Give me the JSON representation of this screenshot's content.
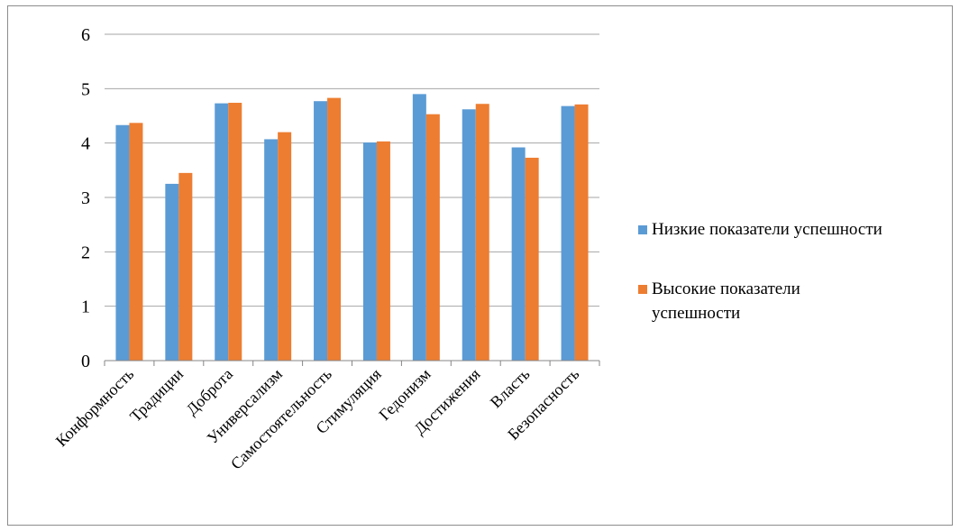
{
  "chart_data": {
    "type": "bar",
    "categories": [
      "Конформность",
      "Традиции",
      "Доброта",
      "Универсализм",
      "Самостоятельность",
      "Стимуляция",
      "Гедонизм",
      "Достижения",
      "Власть",
      "Безопасность"
    ],
    "series": [
      {
        "name": "Низкие показатели успешности",
        "color": "#5b9bd5",
        "values": [
          4.33,
          3.25,
          4.73,
          4.07,
          4.77,
          4.01,
          4.9,
          4.62,
          3.92,
          4.68
        ]
      },
      {
        "name": "Высокие показатели успешности",
        "color": "#ed7d31",
        "values": [
          4.37,
          3.45,
          4.74,
          4.2,
          4.83,
          4.03,
          4.53,
          4.72,
          3.73,
          4.71
        ]
      }
    ],
    "ylim": [
      0,
      6
    ],
    "yticks": [
      "0",
      "1",
      "2",
      "3",
      "4",
      "5",
      "6"
    ],
    "grid": true,
    "legend_position": "right",
    "legend_lines": [
      [
        "Низкие показатели успешности"
      ],
      [
        "Высокие показатели",
        "успешности"
      ]
    ]
  }
}
